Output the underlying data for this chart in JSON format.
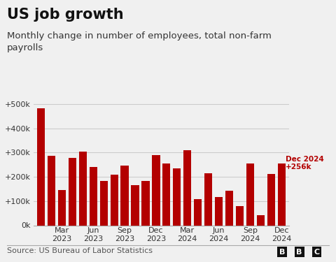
{
  "title": "US job growth",
  "subtitle": "Monthly change in number of employees, total non-farm\npayrolls",
  "source": "Source: US Bureau of Labor Statistics",
  "bbc_logo": "BBC",
  "bar_color": "#b30000",
  "background_color": "#f0f0f0",
  "annotation_text": "Dec 2024\n+256k",
  "annotation_color": "#b30000",
  "tick_labels": [
    "Mar\n2023",
    "Jun\n2023",
    "Sep\n2023",
    "Dec\n2023",
    "Mar\n2024",
    "Jun\n2024",
    "Sep\n2024",
    "Dec\n2024"
  ],
  "tick_positions": [
    2,
    5,
    8,
    11,
    14,
    17,
    20,
    23
  ],
  "values": [
    482000,
    287000,
    146000,
    278000,
    303000,
    240000,
    184000,
    210000,
    246000,
    165000,
    182000,
    290000,
    256000,
    236000,
    310000,
    108000,
    216000,
    118000,
    144000,
    78000,
    255000,
    43000,
    212000,
    256000
  ],
  "ylim": [
    0,
    540000
  ],
  "yticks": [
    0,
    100000,
    200000,
    300000,
    400000,
    500000
  ],
  "ytick_labels": [
    "0k",
    "+100k",
    "+200k",
    "+300k",
    "+400k",
    "+500k"
  ],
  "grid_color": "#cccccc",
  "title_fontsize": 15,
  "subtitle_fontsize": 9.5,
  "source_fontsize": 8,
  "tick_fontsize": 8
}
